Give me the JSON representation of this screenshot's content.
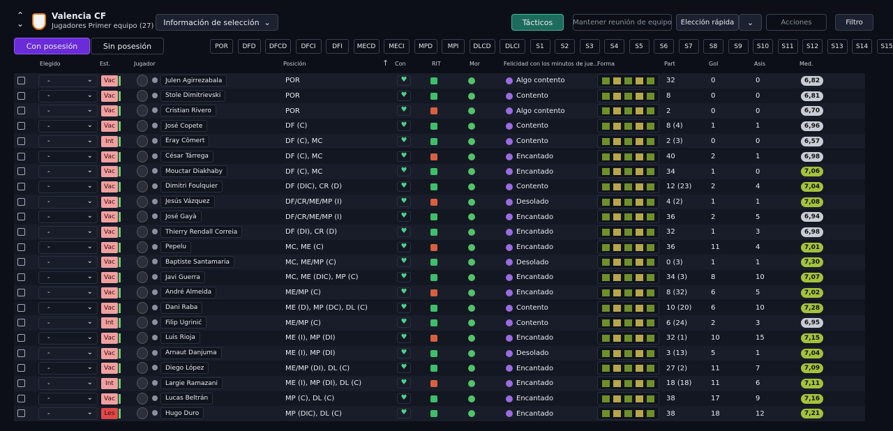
{
  "header": {
    "club": "Valencia CF",
    "subtitle": "Jugadores Primer equipo (27)"
  },
  "toolbar": {
    "selection_info": "Información de selección",
    "tactics": "Tácticos",
    "team_meeting": "Mantener reunión de equipo",
    "quick_pick": "Elección rápida",
    "actions": "Acciones",
    "filter": "Filtro"
  },
  "possession_tabs": [
    "Con posesión",
    "Sin posesión"
  ],
  "position_tabs": [
    "POR",
    "DFD",
    "DFCD",
    "DFCI",
    "DFI",
    "MECD",
    "MECI",
    "MPD",
    "MPI",
    "DLCD",
    "DLCI",
    "S1",
    "S2",
    "S3",
    "S4",
    "S5",
    "S6",
    "S7",
    "S8",
    "S9",
    "S10",
    "S11",
    "S12",
    "S13",
    "S14",
    "S15"
  ],
  "table": {
    "columns": [
      "Elegido",
      "Est.",
      "Jugador",
      "Posición",
      "Con",
      "RIT",
      "Mor",
      "Felicidad con los minutos de jue...",
      "Forma",
      "Part",
      "Gol",
      "Asis",
      "Med."
    ],
    "rows": [
      [
        "-",
        "Vac",
        "Julen Agirrezabala",
        "POR",
        "Algo contento",
        "32",
        0,
        0,
        "6,82"
      ],
      [
        "-",
        "Vac",
        "Stole Dimitrievski",
        "POR",
        "Contento",
        "8",
        0,
        0,
        "6,81"
      ],
      [
        "-",
        "Vac",
        "Cristian Rivero",
        "POR",
        "Algo contento",
        "2",
        0,
        0,
        "6,70"
      ],
      [
        "-",
        "Vac",
        "José Copete",
        "DF (C)",
        "Contento",
        "8 (4)",
        1,
        1,
        "6,96"
      ],
      [
        "-",
        "Int",
        "Eray Cömert",
        "DF (C), MC",
        "Contento",
        "2 (3)",
        0,
        0,
        "6,57"
      ],
      [
        "-",
        "Vac",
        "César Tárrega",
        "DF (C), MC",
        "Encantado",
        "40",
        2,
        1,
        "6,98"
      ],
      [
        "-",
        "Vac",
        "Mouctar Diakhaby",
        "DF (C), MC",
        "Encantado",
        "34",
        1,
        0,
        "7,06"
      ],
      [
        "-",
        "Vac",
        "Dimitri Foulquier",
        "DF (DIC), CR (D)",
        "Contento",
        "12 (23)",
        2,
        4,
        "7,04"
      ],
      [
        "-",
        "Vac",
        "Jesús Vázquez",
        "DF/CR/ME/MP (I)",
        "Desolado",
        "4 (2)",
        1,
        1,
        "7,08"
      ],
      [
        "-",
        "Vac",
        "José Gayà",
        "DF/CR/ME/MP (I)",
        "Encantado",
        "36",
        2,
        5,
        "6,94"
      ],
      [
        "-",
        "Vac",
        "Thierry Rendall Correia",
        "DF (DI), CR (D)",
        "Encantado",
        "32",
        1,
        3,
        "6,98"
      ],
      [
        "-",
        "Vac",
        "Pepelu",
        "MC, ME (C)",
        "Encantado",
        "36",
        11,
        4,
        "7,01"
      ],
      [
        "-",
        "Vac",
        "Baptiste Santamaria",
        "MC, ME/MP (C)",
        "Desolado",
        "0 (3)",
        1,
        1,
        "7,30"
      ],
      [
        "-",
        "Vac",
        "Javi Guerra",
        "MC, ME (DIC), MP (C)",
        "Encantado",
        "34 (3)",
        8,
        10,
        "7,07"
      ],
      [
        "-",
        "Vac",
        "André Almeida",
        "ME/MP (C)",
        "Encantado",
        "8 (32)",
        6,
        5,
        "7,02"
      ],
      [
        "-",
        "Vac",
        "Dani Raba",
        "ME (D), MP (DC), DL (C)",
        "Contento",
        "10 (20)",
        6,
        10,
        "7,28"
      ],
      [
        "-",
        "Int",
        "Filip Ugrinić",
        "ME/MP (C)",
        "Contento",
        "6 (24)",
        2,
        3,
        "6,95"
      ],
      [
        "-",
        "Vac",
        "Luis Rioja",
        "ME (I), MP (DI)",
        "Encantado",
        "32 (1)",
        10,
        15,
        "7,15"
      ],
      [
        "-",
        "Vac",
        "Arnaut Danjuma",
        "ME (I), MP (DI)",
        "Desolado",
        "3 (13)",
        5,
        1,
        "7,04"
      ],
      [
        "-",
        "Vac",
        "Diego López",
        "ME/MP (DI), DL (C)",
        "Encantado",
        "27 (2)",
        11,
        7,
        "7,09"
      ],
      [
        "-",
        "Int",
        "Largie Ramazani",
        "ME (I), MP (DI), DL (C)",
        "Encantado",
        "18 (18)",
        11,
        6,
        "7,11"
      ],
      [
        "-",
        "Vac",
        "Lucas Beltrán",
        "MP (C), DL (C)",
        "Encantado",
        "38",
        17,
        9,
        "7,16"
      ],
      [
        "-",
        "Les",
        "Hugo Duro",
        "MP (DIC), DL (C)",
        "Encantado",
        "38",
        18,
        12,
        "7,21"
      ]
    ]
  }
}
